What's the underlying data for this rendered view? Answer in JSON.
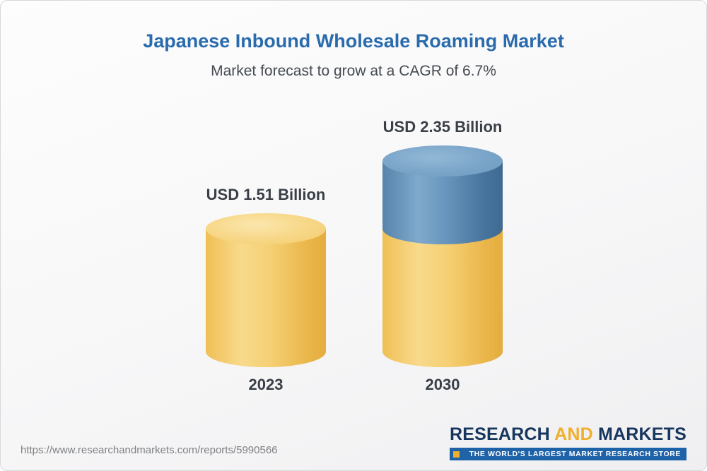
{
  "page": {
    "title": "Japanese Inbound Wholesale Roaming Market",
    "subtitle": "Market forecast to grow at a CAGR of 6.7%"
  },
  "footer": {
    "url": "https://www.researchandmarkets.com/reports/5990566",
    "logo": {
      "word_research": "RESEARCH",
      "word_and": "AND",
      "word_markets": "MARKETS",
      "tagline": "THE WORLD'S LARGEST MARKET RESEARCH STORE"
    }
  },
  "chart_data": {
    "type": "bar",
    "title": "Japanese Inbound Wholesale Roaming Market",
    "subtitle": "Market forecast to grow at a CAGR of 6.7%",
    "cagr_percent": 6.7,
    "unit": "USD Billion",
    "categories": [
      "2023",
      "2030"
    ],
    "values": [
      1.51,
      2.35
    ],
    "ylim": [
      0,
      2.5
    ],
    "legend": "none",
    "grid": "off",
    "bars": [
      {
        "category": "2023",
        "label": "USD 1.51 Billion",
        "total": 1.51,
        "segments": [
          {
            "color_key": "base",
            "value": 1.51
          }
        ]
      },
      {
        "category": "2030",
        "label": "USD 2.35 Billion",
        "total": 2.35,
        "segments": [
          {
            "color_key": "base",
            "value": 1.51
          },
          {
            "color_key": "growth",
            "value": 0.84
          }
        ]
      }
    ],
    "colors": {
      "base": "#F3C75F",
      "growth": "#5C8DB5",
      "title": "#2A6BAD"
    }
  }
}
